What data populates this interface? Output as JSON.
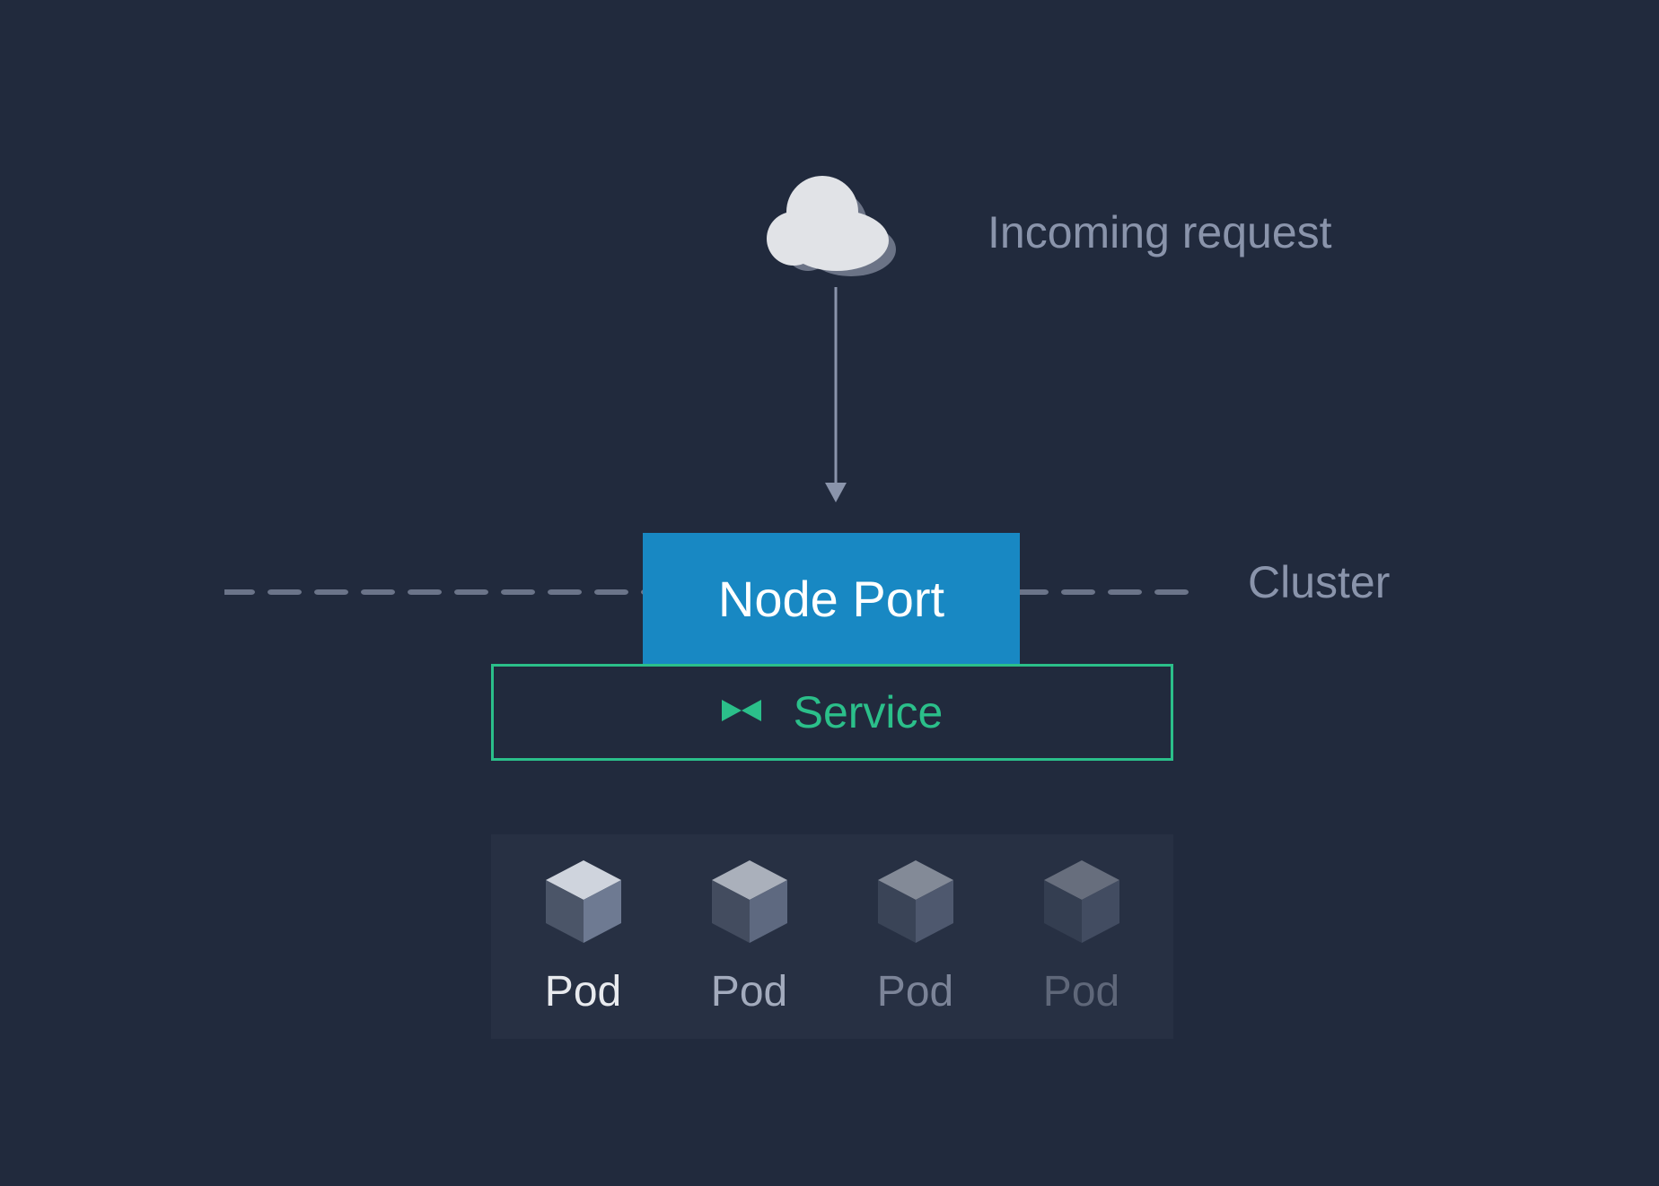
{
  "diagram": {
    "type": "flowchart",
    "background_color": "#212a3d",
    "label_color": "#8a94ab",
    "incoming_request_label": "Incoming request",
    "cluster_label": "Cluster",
    "cloud": {
      "front_color": "#e1e3e7",
      "back_color": "#6b7386"
    },
    "arrow": {
      "stroke": "#8a94ab",
      "stroke_width": 3
    },
    "dashed_line": {
      "stroke": "#6b7489",
      "stroke_width": 8,
      "dash": "30,22"
    },
    "nodeport": {
      "label": "Node Port",
      "background": "#1888c3",
      "text_color": "#ffffff",
      "font_size": 56
    },
    "service": {
      "label": "Service",
      "border_color": "#2bbf8a",
      "text_color": "#2bbf8a",
      "icon_color": "#2bbf8a",
      "font_size": 50
    },
    "pods": {
      "container_bg": "rgba(255,255,255,0.03)",
      "cube_top": "#cfd4dd",
      "cube_left": "#4b5568",
      "cube_right": "#6e7a92",
      "items": [
        {
          "label": "Pod",
          "opacity": 1.0,
          "text_color": "#e8eaee"
        },
        {
          "label": "Pod",
          "opacity": 0.78,
          "text_color": "#a3abbd"
        },
        {
          "label": "Pod",
          "opacity": 0.55,
          "text_color": "#7c8498"
        },
        {
          "label": "Pod",
          "opacity": 0.38,
          "text_color": "#5f6779"
        }
      ]
    }
  }
}
